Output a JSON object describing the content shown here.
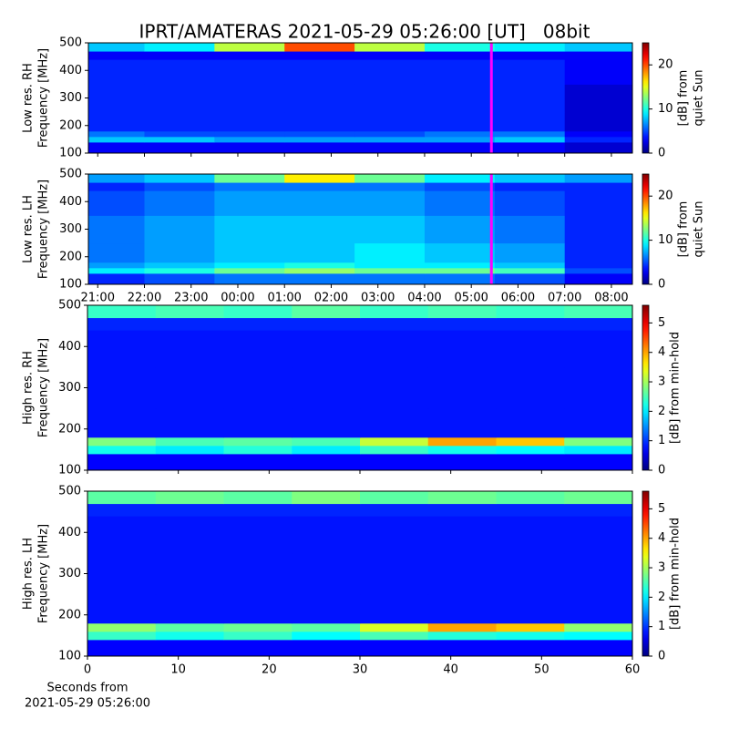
{
  "chart_data": [
    {
      "type": "heatmap",
      "title": "IPRT/AMATERAS 2021-05-29 05:26:00 [UT]   08bit",
      "ylabel": [
        "Low res. RH",
        "Frequency [MHz]"
      ],
      "colorbar_label": [
        "[dB] from",
        "quiet Sun"
      ],
      "colormap": "jet",
      "xbins": [
        20.8,
        22,
        23.5,
        25,
        26.5,
        28,
        29.5,
        31,
        32.45
      ],
      "ybins": [
        100,
        140,
        160,
        180,
        250,
        350,
        440,
        470,
        500
      ],
      "values": [
        [
          3,
          3,
          3,
          3,
          3,
          3,
          3,
          2
        ],
        [
          8,
          8,
          7,
          7,
          7,
          7,
          8,
          4
        ],
        [
          6,
          5,
          5,
          5,
          5,
          6,
          6,
          3
        ],
        [
          4,
          4,
          4,
          4,
          4,
          4,
          4,
          2
        ],
        [
          4,
          4,
          4,
          4,
          4,
          4,
          4,
          2
        ],
        [
          4,
          4,
          4,
          4,
          4,
          4,
          4,
          3
        ],
        [
          3,
          3,
          3,
          3,
          3,
          3,
          3,
          3
        ],
        [
          8,
          9,
          14,
          20,
          14,
          10,
          9,
          8
        ]
      ],
      "xlim": [
        20.8,
        32.45
      ],
      "xticks": [
        21,
        22,
        23,
        24,
        25,
        26,
        27,
        28,
        29,
        30,
        31,
        32
      ],
      "ylim": [
        100,
        500
      ],
      "yticks": [
        100,
        200,
        300,
        400,
        500
      ],
      "clim": [
        0,
        25
      ],
      "cticks": [
        0,
        10,
        20
      ],
      "marker_x": 29.43,
      "marker_color": "#ff00ff"
    },
    {
      "type": "heatmap",
      "ylabel": [
        "Low res. LH",
        "Frequency [MHz]"
      ],
      "colorbar_label": [
        "[dB] from",
        "quiet Sun"
      ],
      "colormap": "jet",
      "xbins": [
        20.8,
        22,
        23.5,
        25,
        26.5,
        28,
        29.5,
        31,
        32.45
      ],
      "ybins": [
        100,
        140,
        160,
        180,
        250,
        350,
        440,
        470,
        500
      ],
      "values": [
        [
          4,
          5,
          6,
          6,
          6,
          6,
          5,
          3
        ],
        [
          9,
          10,
          12,
          13,
          12,
          12,
          11,
          5
        ],
        [
          7,
          8,
          9,
          10,
          9,
          9,
          8,
          4
        ],
        [
          6,
          7,
          8,
          8,
          9,
          8,
          7,
          4
        ],
        [
          6,
          7,
          8,
          8,
          8,
          7,
          6,
          4
        ],
        [
          5,
          6,
          7,
          7,
          7,
          6,
          5,
          4
        ],
        [
          4,
          5,
          6,
          6,
          6,
          5,
          4,
          4
        ],
        [
          7,
          8,
          12,
          16,
          12,
          9,
          8,
          7
        ]
      ],
      "xlim": [
        20.8,
        32.45
      ],
      "xticks": [
        {
          "value": 21,
          "label": "21:00"
        },
        {
          "value": 22,
          "label": "22:00"
        },
        {
          "value": 23,
          "label": "23:00"
        },
        {
          "value": 24,
          "label": "00:00"
        },
        {
          "value": 25,
          "label": "01:00"
        },
        {
          "value": 26,
          "label": "02:00"
        },
        {
          "value": 27,
          "label": "03:00"
        },
        {
          "value": 28,
          "label": "04:00"
        },
        {
          "value": 29,
          "label": "05:00"
        },
        {
          "value": 30,
          "label": "06:00"
        },
        {
          "value": 31,
          "label": "07:00"
        },
        {
          "value": 32,
          "label": "08:00"
        }
      ],
      "ylim": [
        100,
        500
      ],
      "yticks": [
        100,
        200,
        300,
        400,
        500
      ],
      "clim": [
        0,
        25
      ],
      "cticks": [
        0,
        10,
        20
      ],
      "marker_x": 29.43,
      "marker_color": "#ff00ff"
    },
    {
      "type": "heatmap",
      "ylabel": [
        "High res. RH",
        "Frequency [MHz]"
      ],
      "colorbar_label": [
        "[dB] from min-hold"
      ],
      "colormap": "jet",
      "xbins": [
        0,
        7.5,
        15,
        22.5,
        30,
        37.5,
        45,
        52.5,
        60
      ],
      "ybins": [
        100,
        140,
        160,
        180,
        250,
        350,
        440,
        470,
        500
      ],
      "values": [
        [
          0.7,
          0.7,
          0.7,
          0.7,
          0.7,
          0.7,
          0.7,
          0.7
        ],
        [
          2.2,
          2.0,
          2.3,
          2.0,
          2.4,
          2.2,
          2.1,
          2.0
        ],
        [
          2.8,
          2.5,
          2.6,
          2.5,
          3.2,
          4.0,
          3.8,
          2.8
        ],
        [
          0.8,
          0.8,
          0.8,
          0.8,
          0.8,
          0.8,
          0.8,
          0.8
        ],
        [
          0.8,
          0.8,
          0.8,
          0.8,
          0.8,
          0.8,
          0.8,
          0.8
        ],
        [
          0.8,
          0.8,
          0.8,
          0.8,
          0.8,
          0.8,
          0.8,
          0.8
        ],
        [
          0.9,
          0.9,
          0.9,
          0.9,
          0.9,
          0.9,
          0.9,
          0.9
        ],
        [
          2.4,
          2.5,
          2.4,
          2.6,
          2.4,
          2.5,
          2.4,
          2.5
        ]
      ],
      "xlim": [
        0,
        60
      ],
      "xticks": [
        0,
        10,
        20,
        30,
        40,
        50,
        60
      ],
      "ylim": [
        100,
        500
      ],
      "yticks": [
        100,
        200,
        300,
        400,
        500
      ],
      "clim": [
        0,
        5.6
      ],
      "cticks": [
        0,
        1,
        2,
        3,
        4,
        5
      ]
    },
    {
      "type": "heatmap",
      "ylabel": [
        "High res. LH",
        "Frequency [MHz]"
      ],
      "colorbar_label": [
        "[dB] from min-hold"
      ],
      "xlabel": [
        "Seconds from",
        "2021-05-29 05:26:00"
      ],
      "colormap": "jet",
      "xbins": [
        0,
        7.5,
        15,
        22.5,
        30,
        37.5,
        45,
        52.5,
        60
      ],
      "ybins": [
        100,
        140,
        160,
        180,
        250,
        350,
        440,
        470,
        500
      ],
      "values": [
        [
          0.7,
          0.7,
          0.7,
          0.7,
          0.7,
          0.7,
          0.7,
          0.7
        ],
        [
          2.4,
          2.2,
          2.4,
          2.1,
          2.5,
          2.3,
          2.2,
          2.1
        ],
        [
          2.9,
          2.6,
          2.7,
          2.6,
          3.3,
          4.0,
          3.8,
          2.9
        ],
        [
          0.8,
          0.8,
          0.8,
          0.8,
          0.8,
          0.8,
          0.8,
          0.8
        ],
        [
          0.8,
          0.8,
          0.8,
          0.8,
          0.8,
          0.8,
          0.8,
          0.8
        ],
        [
          0.8,
          0.8,
          0.8,
          0.8,
          0.8,
          0.8,
          0.8,
          0.8
        ],
        [
          0.9,
          0.9,
          0.9,
          0.9,
          0.9,
          0.9,
          0.9,
          0.9
        ],
        [
          2.6,
          2.7,
          2.6,
          2.8,
          2.6,
          2.7,
          2.6,
          2.7
        ]
      ],
      "xlim": [
        0,
        60
      ],
      "xticks": [
        {
          "value": 0,
          "label": "0"
        },
        {
          "value": 10,
          "label": "10"
        },
        {
          "value": 20,
          "label": "20"
        },
        {
          "value": 30,
          "label": "30"
        },
        {
          "value": 40,
          "label": "40"
        },
        {
          "value": 50,
          "label": "50"
        },
        {
          "value": 60,
          "label": "60"
        }
      ],
      "ylim": [
        100,
        500
      ],
      "yticks": [
        100,
        200,
        300,
        400,
        500
      ],
      "clim": [
        0,
        5.6
      ],
      "cticks": [
        0,
        1,
        2,
        3,
        4,
        5
      ]
    }
  ]
}
